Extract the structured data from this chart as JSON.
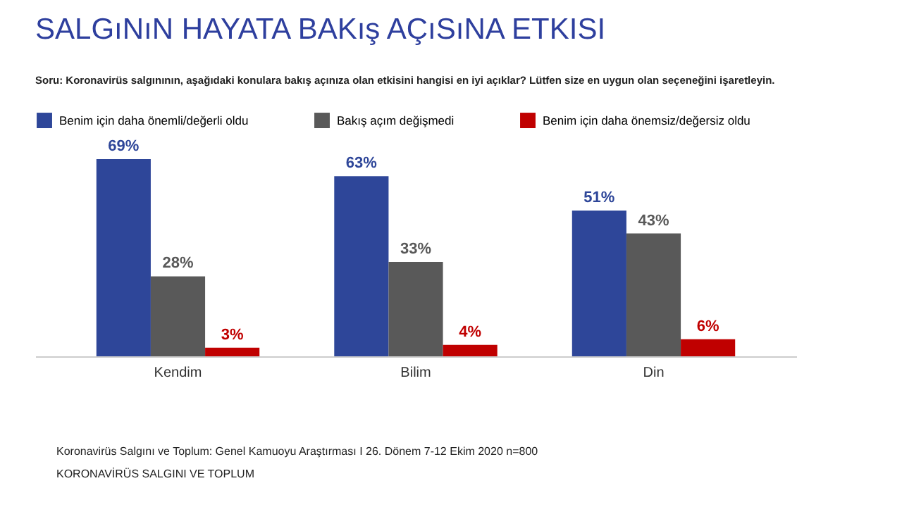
{
  "chart_data": {
    "type": "bar",
    "title": "SALGıNıN HAYATA BAKış AÇıSıNA ETKISI",
    "subtitle": "Soru: Koronavirüs salgınının, aşağıdaki konulara bakış açınıza olan etkisini hangisi en iyi açıklar? Lütfen size en uygun olan seçeneğini işaretleyin.",
    "categories": [
      "Kendim",
      "Bilim",
      "Din"
    ],
    "series": [
      {
        "name": "Benim için daha önemli/değerli oldu",
        "color": "#2e4699",
        "values": [
          69,
          63,
          51
        ],
        "value_labels": [
          "69%",
          "63%",
          "51%"
        ]
      },
      {
        "name": "Bakış açım değişmedi",
        "color": "#595959",
        "values": [
          28,
          33,
          43
        ],
        "value_labels": [
          "28%",
          "33%",
          "43%"
        ]
      },
      {
        "name": "Benim için daha önemsiz/değersiz oldu",
        "color": "#c00000",
        "values": [
          3,
          4,
          6
        ],
        "value_labels": [
          "3%",
          "4%",
          "6%"
        ]
      }
    ],
    "legend": "top",
    "annotations": [
      "Koronavirüs Salgını ve Toplum: Genel Kamuoyu Araştırması I 26. Dönem 7-12 Ekim 2020 n=800",
      "KORONAVİRÜS SALGINI VE TOPLUM"
    ]
  }
}
